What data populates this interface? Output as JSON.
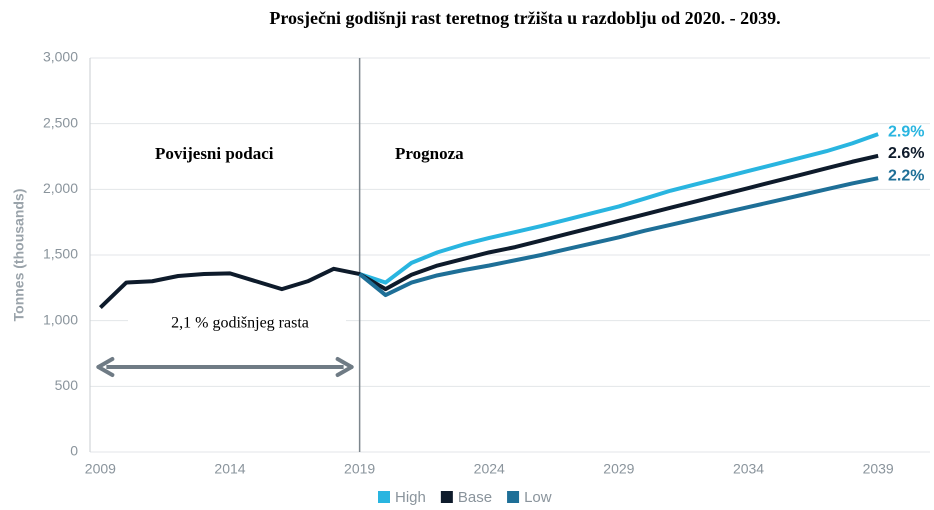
{
  "chart_data": {
    "type": "line",
    "title": "Prosječni godišnji rast teretnog tržišta u razdoblju od 2020. - 2039.",
    "y_label": "Tonnes (thousands)",
    "annotations": {
      "history": "Povijesni podaci",
      "forecast": "Prognoza",
      "growth": "2,1 % godišnjeg rasta"
    },
    "divider": 2019,
    "arrow": [
      2009,
      2019
    ],
    "x": [
      2009,
      2010,
      2011,
      2012,
      2013,
      2014,
      2015,
      2016,
      2017,
      2018,
      2019,
      2020,
      2021,
      2022,
      2023,
      2024,
      2025,
      2026,
      2027,
      2028,
      2029,
      2030,
      2031,
      2032,
      2033,
      2034,
      2035,
      2036,
      2037,
      2038,
      2039
    ],
    "series": [
      {
        "name": "High",
        "color": "#29b5e0",
        "end_label": "2.9%",
        "values": [
          null,
          null,
          null,
          null,
          null,
          null,
          null,
          null,
          null,
          null,
          1355,
          1290,
          1440,
          1520,
          1580,
          1630,
          1675,
          1720,
          1770,
          1820,
          1870,
          1930,
          1990,
          2040,
          2090,
          2140,
          2190,
          2240,
          2290,
          2350,
          2420
        ]
      },
      {
        "name": "Base",
        "color": "#0e1b2b",
        "end_label": "2.6%",
        "values": [
          1100,
          1290,
          1300,
          1340,
          1355,
          1360,
          1300,
          1240,
          1300,
          1395,
          1355,
          1240,
          1350,
          1420,
          1470,
          1520,
          1560,
          1610,
          1660,
          1710,
          1760,
          1810,
          1860,
          1910,
          1960,
          2010,
          2060,
          2110,
          2160,
          2210,
          2255
        ]
      },
      {
        "name": "Low",
        "color": "#1e6f97",
        "end_label": "2.2%",
        "values": [
          null,
          null,
          null,
          null,
          null,
          null,
          null,
          null,
          null,
          null,
          1355,
          1195,
          1290,
          1345,
          1385,
          1420,
          1460,
          1500,
          1545,
          1590,
          1635,
          1685,
          1730,
          1775,
          1820,
          1865,
          1910,
          1955,
          2000,
          2045,
          2085
        ]
      }
    ],
    "xlim": [
      2008.6,
      2041
    ],
    "xticks": [
      2009,
      2014,
      2019,
      2024,
      2029,
      2034,
      2039
    ],
    "ylim": [
      0,
      3000
    ],
    "yticks": [
      0,
      500,
      {
        "value": 1000,
        "label": "1,000"
      },
      {
        "value": 1500,
        "label": "1,500"
      },
      {
        "value": 2000,
        "label": "2,000"
      },
      {
        "value": 2500,
        "label": "2,500"
      },
      {
        "value": 3000,
        "label": "3,000"
      }
    ],
    "grid": true,
    "legend": "bottom"
  }
}
